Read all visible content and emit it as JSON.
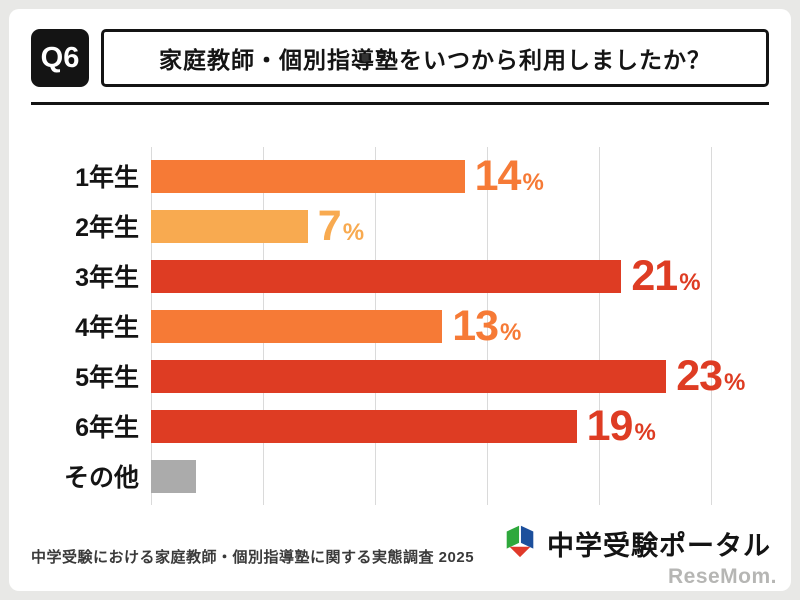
{
  "page": {
    "question_tag": "Q6",
    "title": "家庭教師・個別指導塾をいつから利用しましたか？",
    "footer_note": "中学受験における家庭教師・個別指導塾に関する実態調査 2025",
    "logo_text": "中学受験ポータル",
    "watermark": "ReseMom."
  },
  "colors": {
    "orange": "#F67A36",
    "light_orange": "#F8AA50",
    "red": "#DE3C23",
    "gray": "#ABABAB",
    "frame_black": "#141414"
  },
  "chart_data": {
    "type": "bar",
    "orientation": "horizontal",
    "title": "家庭教師・個別指導塾をいつから利用しましたか？",
    "categories": [
      "1年生",
      "2年生",
      "3年生",
      "4年生",
      "5年生",
      "6年生",
      "その他"
    ],
    "values": [
      14,
      7,
      21,
      13,
      23,
      19,
      2
    ],
    "value_labels": [
      "14",
      "7",
      "21",
      "13",
      "23",
      "19",
      ""
    ],
    "unit": "%",
    "xlim": [
      0,
      25
    ],
    "grid": true,
    "grid_interval": 5,
    "legend": "none",
    "bar_colors": [
      "#F67A36",
      "#F8AA50",
      "#DE3C23",
      "#F67A36",
      "#DE3C23",
      "#DE3C23",
      "#ABABAB"
    ]
  }
}
